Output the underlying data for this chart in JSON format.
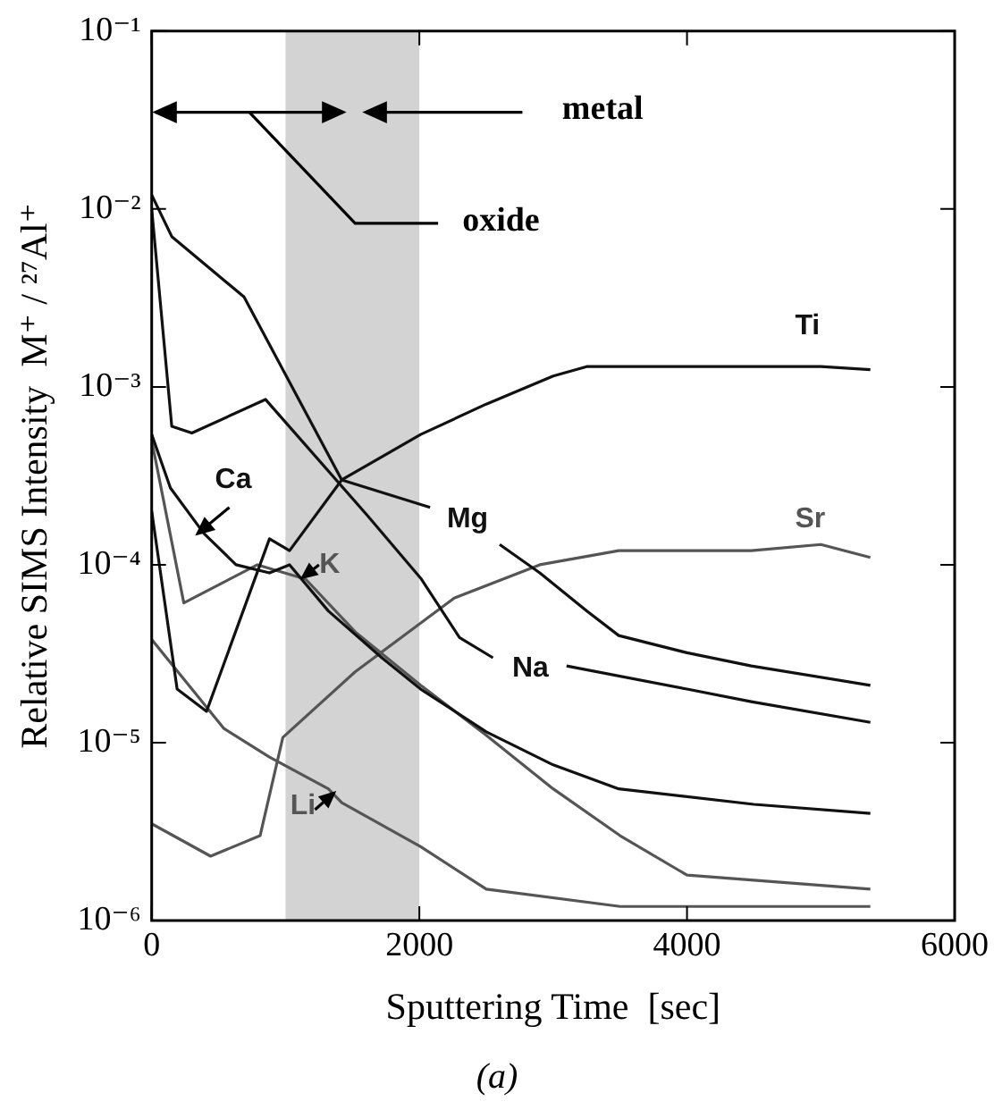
{
  "chart_data": {
    "type": "line",
    "xlabel": "Sputtering Time  [sec]",
    "ylabel": "Relative SIMS Intensity  M⁺ / ²⁷Al⁺",
    "log": "y",
    "grid": false,
    "legend": false,
    "marker": "none",
    "line_style": "solid",
    "xlim": [
      0,
      6000
    ],
    "xticks": [
      0,
      2000,
      4000,
      6000
    ],
    "ylim": [
      1e-06,
      0.1
    ],
    "yticks": [
      {
        "value": 1e-06,
        "label": "10⁻⁶"
      },
      {
        "value": 1e-05,
        "label": "10⁻⁵"
      },
      {
        "value": 0.0001,
        "label": "10⁻⁴"
      },
      {
        "value": 0.001,
        "label": "10⁻³"
      },
      {
        "value": 0.01,
        "label": "10⁻²"
      },
      {
        "value": 0.1,
        "label": "10⁻¹"
      }
    ],
    "bands": [
      {
        "axis": "x",
        "from": 1000,
        "to": 2000,
        "color": "#d3d3d3"
      }
    ],
    "series": [
      {
        "name": "Ti",
        "color": "#111111",
        "x": [
          0,
          190,
          410,
          880,
          1030,
          1420,
          2010,
          2500,
          3000,
          3250,
          4000,
          4500,
          5000,
          5370
        ],
        "values": [
          0.0002,
          2e-05,
          1.5e-05,
          0.00014,
          0.00012,
          0.0003,
          0.00054,
          0.0008,
          0.00115,
          0.0013,
          0.0013,
          0.0013,
          0.0013,
          0.00125
        ]
      },
      {
        "name": "Mg",
        "color": "#111111",
        "x": [
          0,
          150,
          690,
          1420,
          2080,
          2300,
          2600,
          2900,
          3250,
          3490,
          4000,
          4480,
          5370
        ],
        "values": [
          0.012,
          0.007,
          0.0032,
          0.0003,
          0.00021,
          null,
          0.00013,
          9e-05,
          5.5e-05,
          4e-05,
          3.2e-05,
          2.7e-05,
          2.1e-05
        ]
      },
      {
        "name": "Na",
        "color": "#111111",
        "x": [
          0,
          150,
          300,
          850,
          1610,
          2010,
          2300,
          2550,
          2700,
          3100,
          4000,
          4480,
          5370
        ],
        "values": [
          0.01,
          0.0006,
          0.00055,
          0.00085,
          0.00019,
          8.4e-05,
          3.9e-05,
          3e-05,
          null,
          2.7e-05,
          2e-05,
          1.7e-05,
          1.3e-05
        ]
      },
      {
        "name": "Ca",
        "color": "#111111",
        "x": [
          0,
          140,
          390,
          630,
          880,
          1030,
          1320,
          1720,
          2010,
          2500,
          3000,
          3490,
          4500,
          5370
        ],
        "values": [
          0.00054,
          0.00027,
          0.00015,
          0.0001,
          9e-05,
          0.0001,
          5.5e-05,
          3e-05,
          2e-05,
          1.15e-05,
          7.5e-06,
          5.5e-06,
          4.5e-06,
          4e-06
        ]
      },
      {
        "name": "K",
        "color": "#555555",
        "x": [
          0,
          240,
          790,
          1150,
          1520,
          2010,
          2500,
          3000,
          3500,
          4000,
          5370
        ],
        "values": [
          0.0005,
          6.1e-05,
          0.0001,
          8.3e-05,
          4.2e-05,
          2.1e-05,
          1.1e-05,
          5.5e-06,
          3e-06,
          1.8e-06,
          1.5e-06
        ]
      },
      {
        "name": "Sr",
        "color": "#555555",
        "x": [
          0,
          440,
          810,
          980,
          1520,
          2260,
          2900,
          3490,
          4480,
          5000,
          5370
        ],
        "values": [
          3.5e-06,
          2.3e-06,
          3e-06,
          1.07e-05,
          2.5e-05,
          6.5e-05,
          0.0001,
          0.00012,
          0.00012,
          0.00013,
          0.00011
        ]
      },
      {
        "name": "Li",
        "color": "#555555",
        "x": [
          0,
          540,
          880,
          1320,
          1420,
          2010,
          2500,
          3500,
          5370
        ],
        "values": [
          3.8e-05,
          1.2e-05,
          8.3e-06,
          5.5e-06,
          4.6e-06,
          2.6e-06,
          1.5e-06,
          1.2e-06,
          1.2e-06
        ]
      }
    ],
    "annotations": [
      "metal",
      "oxide",
      "(a)"
    ]
  }
}
